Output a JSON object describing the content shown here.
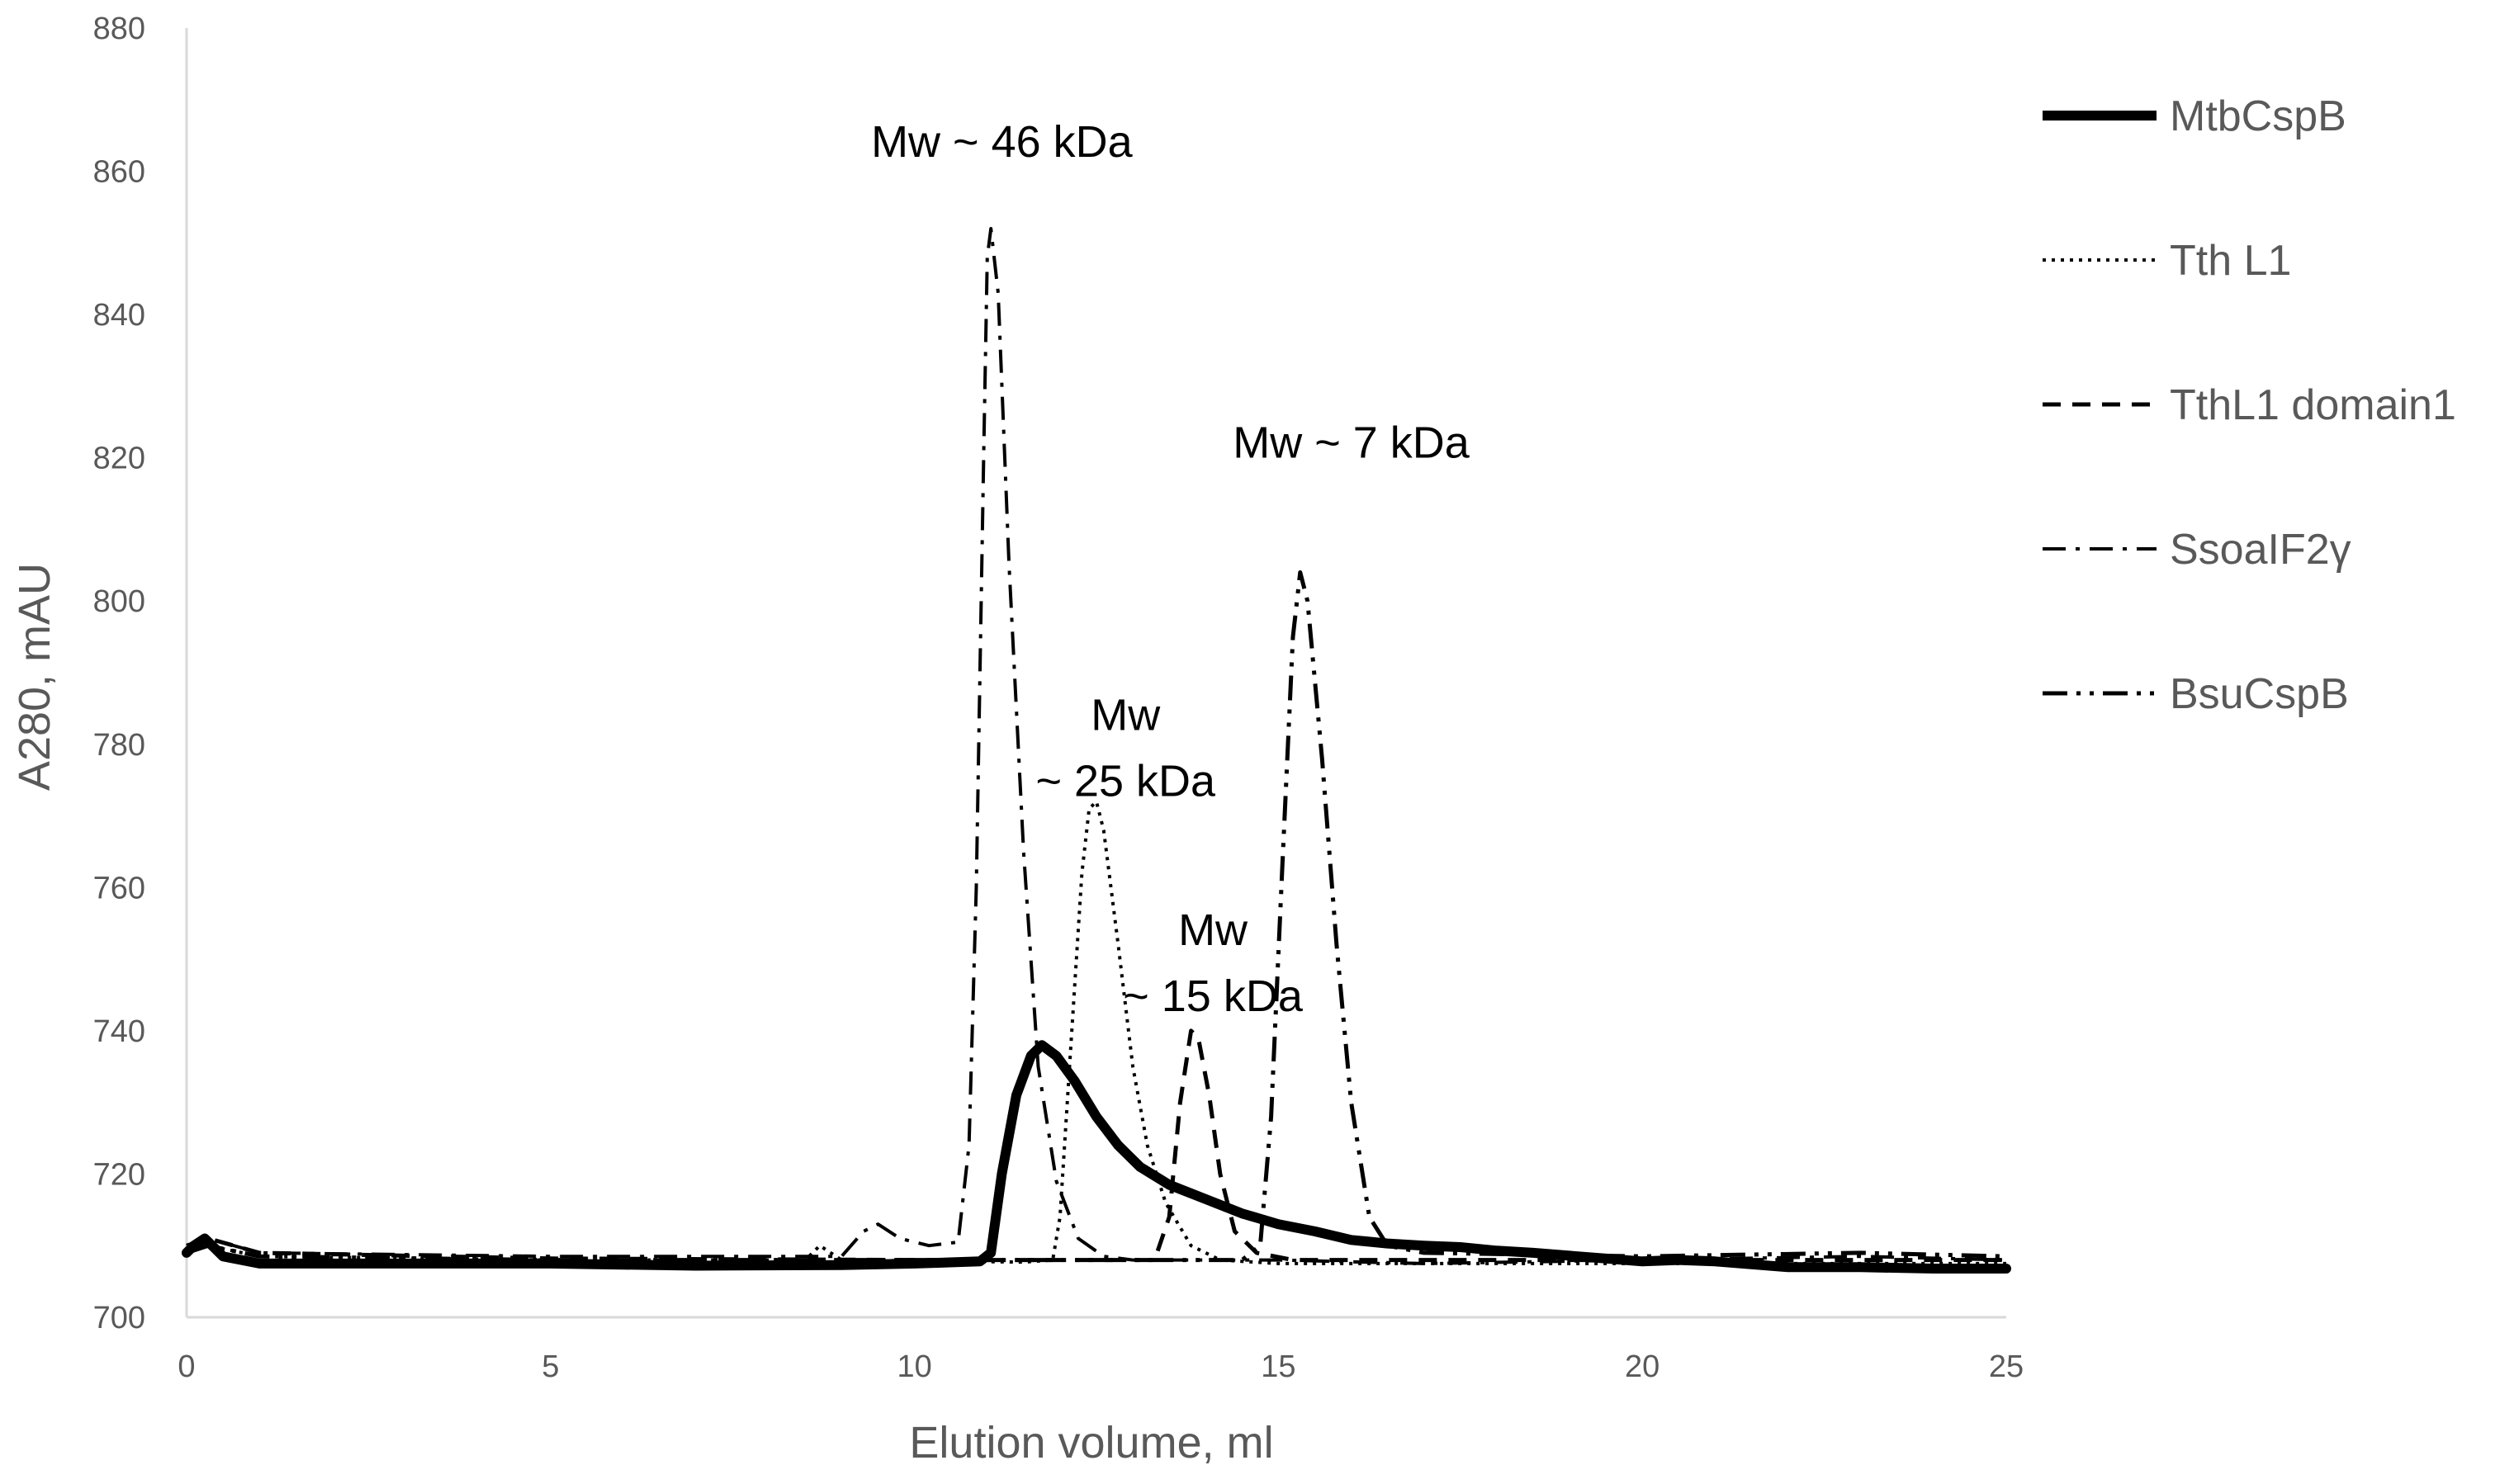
{
  "chart_data": {
    "type": "line",
    "xlabel": "Elution volume, ml",
    "ylabel": "A280, mAU",
    "xlim": [
      0,
      25
    ],
    "ylim": [
      700,
      880
    ],
    "x_ticks": [
      0,
      5,
      10,
      15,
      20,
      25
    ],
    "y_ticks": [
      700,
      720,
      740,
      760,
      780,
      800,
      820,
      840,
      860,
      880
    ],
    "grid": false,
    "legend_position": "right",
    "series": [
      {
        "name": "MtbCspB",
        "style": "solid-thick",
        "color": "#000000",
        "points": [
          [
            0,
            709
          ],
          [
            0.1,
            710
          ],
          [
            0.25,
            711
          ],
          [
            0.5,
            708.5
          ],
          [
            1,
            707.5
          ],
          [
            3,
            707.5
          ],
          [
            5,
            707.5
          ],
          [
            7,
            707.2
          ],
          [
            9,
            707.3
          ],
          [
            10,
            707.5
          ],
          [
            10.9,
            707.8
          ],
          [
            11.05,
            709
          ],
          [
            11.2,
            720
          ],
          [
            11.4,
            731
          ],
          [
            11.6,
            736.5
          ],
          [
            11.75,
            738
          ],
          [
            11.95,
            736.5
          ],
          [
            12.2,
            733
          ],
          [
            12.5,
            728
          ],
          [
            12.8,
            724
          ],
          [
            13.1,
            721
          ],
          [
            13.5,
            718.5
          ],
          [
            14,
            716.5
          ],
          [
            14.5,
            714.5
          ],
          [
            15,
            713
          ],
          [
            15.5,
            712
          ],
          [
            16,
            710.8
          ],
          [
            16.5,
            710.3
          ],
          [
            17,
            710
          ],
          [
            17.5,
            709.8
          ],
          [
            18,
            709.3
          ],
          [
            18.5,
            709
          ],
          [
            19,
            708.6
          ],
          [
            19.5,
            708.2
          ],
          [
            20,
            707.8
          ],
          [
            20.5,
            708
          ],
          [
            21,
            707.8
          ],
          [
            22,
            707
          ],
          [
            23,
            707
          ],
          [
            24,
            706.8
          ],
          [
            25,
            706.8
          ]
        ]
      },
      {
        "name": "Tth L1",
        "style": "dotted",
        "color": "#000000",
        "points": [
          [
            0,
            709
          ],
          [
            0.3,
            710
          ],
          [
            1,
            708.5
          ],
          [
            5,
            708
          ],
          [
            8.5,
            708
          ],
          [
            8.7,
            710
          ],
          [
            9,
            708
          ],
          [
            11.5,
            707.7
          ],
          [
            11.9,
            708
          ],
          [
            12.0,
            714
          ],
          [
            12.15,
            738
          ],
          [
            12.3,
            762
          ],
          [
            12.4,
            771
          ],
          [
            12.5,
            772
          ],
          [
            12.6,
            768
          ],
          [
            12.8,
            752
          ],
          [
            13.0,
            735
          ],
          [
            13.2,
            724
          ],
          [
            13.45,
            716
          ],
          [
            13.8,
            710
          ],
          [
            14.2,
            708
          ],
          [
            15,
            707.5
          ],
          [
            20,
            707.5
          ],
          [
            25,
            707.5
          ]
        ]
      },
      {
        "name": "TthL1 domain1",
        "style": "dashed",
        "color": "#000000",
        "points": [
          [
            0,
            710
          ],
          [
            0.3,
            711
          ],
          [
            1,
            709
          ],
          [
            5,
            708.2
          ],
          [
            10,
            708
          ],
          [
            13.3,
            708
          ],
          [
            13.5,
            714
          ],
          [
            13.65,
            730
          ],
          [
            13.8,
            740
          ],
          [
            13.9,
            739
          ],
          [
            14.05,
            731
          ],
          [
            14.2,
            720
          ],
          [
            14.4,
            712
          ],
          [
            14.7,
            709
          ],
          [
            15.2,
            708
          ],
          [
            20,
            708
          ],
          [
            25,
            708
          ]
        ]
      },
      {
        "name": "SsoaIF2γ",
        "style": "dash-dot",
        "color": "#000000",
        "points": [
          [
            0,
            710
          ],
          [
            0.3,
            711
          ],
          [
            1,
            709
          ],
          [
            5,
            708.5
          ],
          [
            9,
            708.5
          ],
          [
            9.3,
            712
          ],
          [
            9.5,
            713
          ],
          [
            9.8,
            711
          ],
          [
            10.2,
            710
          ],
          [
            10.6,
            710.5
          ],
          [
            10.75,
            724
          ],
          [
            10.85,
            760
          ],
          [
            10.95,
            820
          ],
          [
            11.0,
            848
          ],
          [
            11.05,
            852
          ],
          [
            11.15,
            843
          ],
          [
            11.3,
            805
          ],
          [
            11.5,
            765
          ],
          [
            11.7,
            735
          ],
          [
            11.95,
            719
          ],
          [
            12.25,
            711
          ],
          [
            12.6,
            708.5
          ],
          [
            13,
            708
          ],
          [
            15,
            708
          ],
          [
            17,
            707.5
          ],
          [
            20,
            708
          ],
          [
            23,
            708.5
          ],
          [
            25,
            708
          ]
        ]
      },
      {
        "name": "BsuCspB",
        "style": "dash-dot-dot",
        "color": "#000000",
        "points": [
          [
            0,
            709
          ],
          [
            0.3,
            710
          ],
          [
            1,
            708.5
          ],
          [
            5,
            708
          ],
          [
            10,
            708
          ],
          [
            14.5,
            708
          ],
          [
            14.75,
            710
          ],
          [
            14.9,
            728
          ],
          [
            15.05,
            762
          ],
          [
            15.2,
            795
          ],
          [
            15.3,
            804
          ],
          [
            15.4,
            800
          ],
          [
            15.6,
            778
          ],
          [
            15.8,
            752
          ],
          [
            16.0,
            730
          ],
          [
            16.25,
            714
          ],
          [
            16.5,
            710
          ],
          [
            17,
            709
          ],
          [
            20,
            708.5
          ],
          [
            23,
            709
          ],
          [
            25,
            708.5
          ]
        ]
      }
    ],
    "annotations": [
      {
        "lines": [
          "Mw ~ 46 kDa"
        ],
        "x": 11.2,
        "y": 862
      },
      {
        "lines": [
          "Mw",
          "~ 25 kDa"
        ],
        "x": 12.9,
        "y": 782
      },
      {
        "lines": [
          "Mw",
          "~ 15 kDa"
        ],
        "x": 14.1,
        "y": 752
      },
      {
        "lines": [
          "Mw ~ 7 kDa"
        ],
        "x": 16.0,
        "y": 820
      }
    ]
  }
}
